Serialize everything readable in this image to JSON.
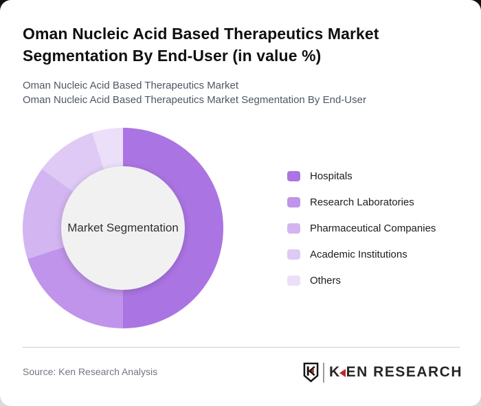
{
  "header": {
    "title": "Oman Nucleic Acid Based Therapeutics Market Segmentation By End-User (in value %)",
    "subtitle_lines": [
      "Oman Nucleic Acid Based Therapeutics Market",
      "Oman Nucleic Acid Based Therapeutics Market Segmentation By End-User"
    ]
  },
  "chart_data": {
    "type": "pie",
    "subtype": "donut",
    "title": "Oman Nucleic Acid Based Therapeutics Market Segmentation By End-User (in value %)",
    "center_label": "Market Segmentation",
    "legend_position": "right",
    "values_estimated_from_angles": true,
    "segments": [
      {
        "label": "Hospitals",
        "value": 50,
        "color": "#ab74e3"
      },
      {
        "label": "Research Laboratories",
        "value": 20,
        "color": "#bf94ea"
      },
      {
        "label": "Pharmaceutical Companies",
        "value": 15,
        "color": "#d3b5f1"
      },
      {
        "label": "Academic Institutions",
        "value": 10,
        "color": "#decaf5"
      },
      {
        "label": "Others",
        "value": 5,
        "color": "#ecdff9"
      }
    ],
    "hole_color": "#f1f1f2"
  },
  "footer": {
    "source": "Source: Ken Research Analysis",
    "logo": {
      "brand": "KEN RESEARCH",
      "accent_color": "#c1272d"
    }
  }
}
